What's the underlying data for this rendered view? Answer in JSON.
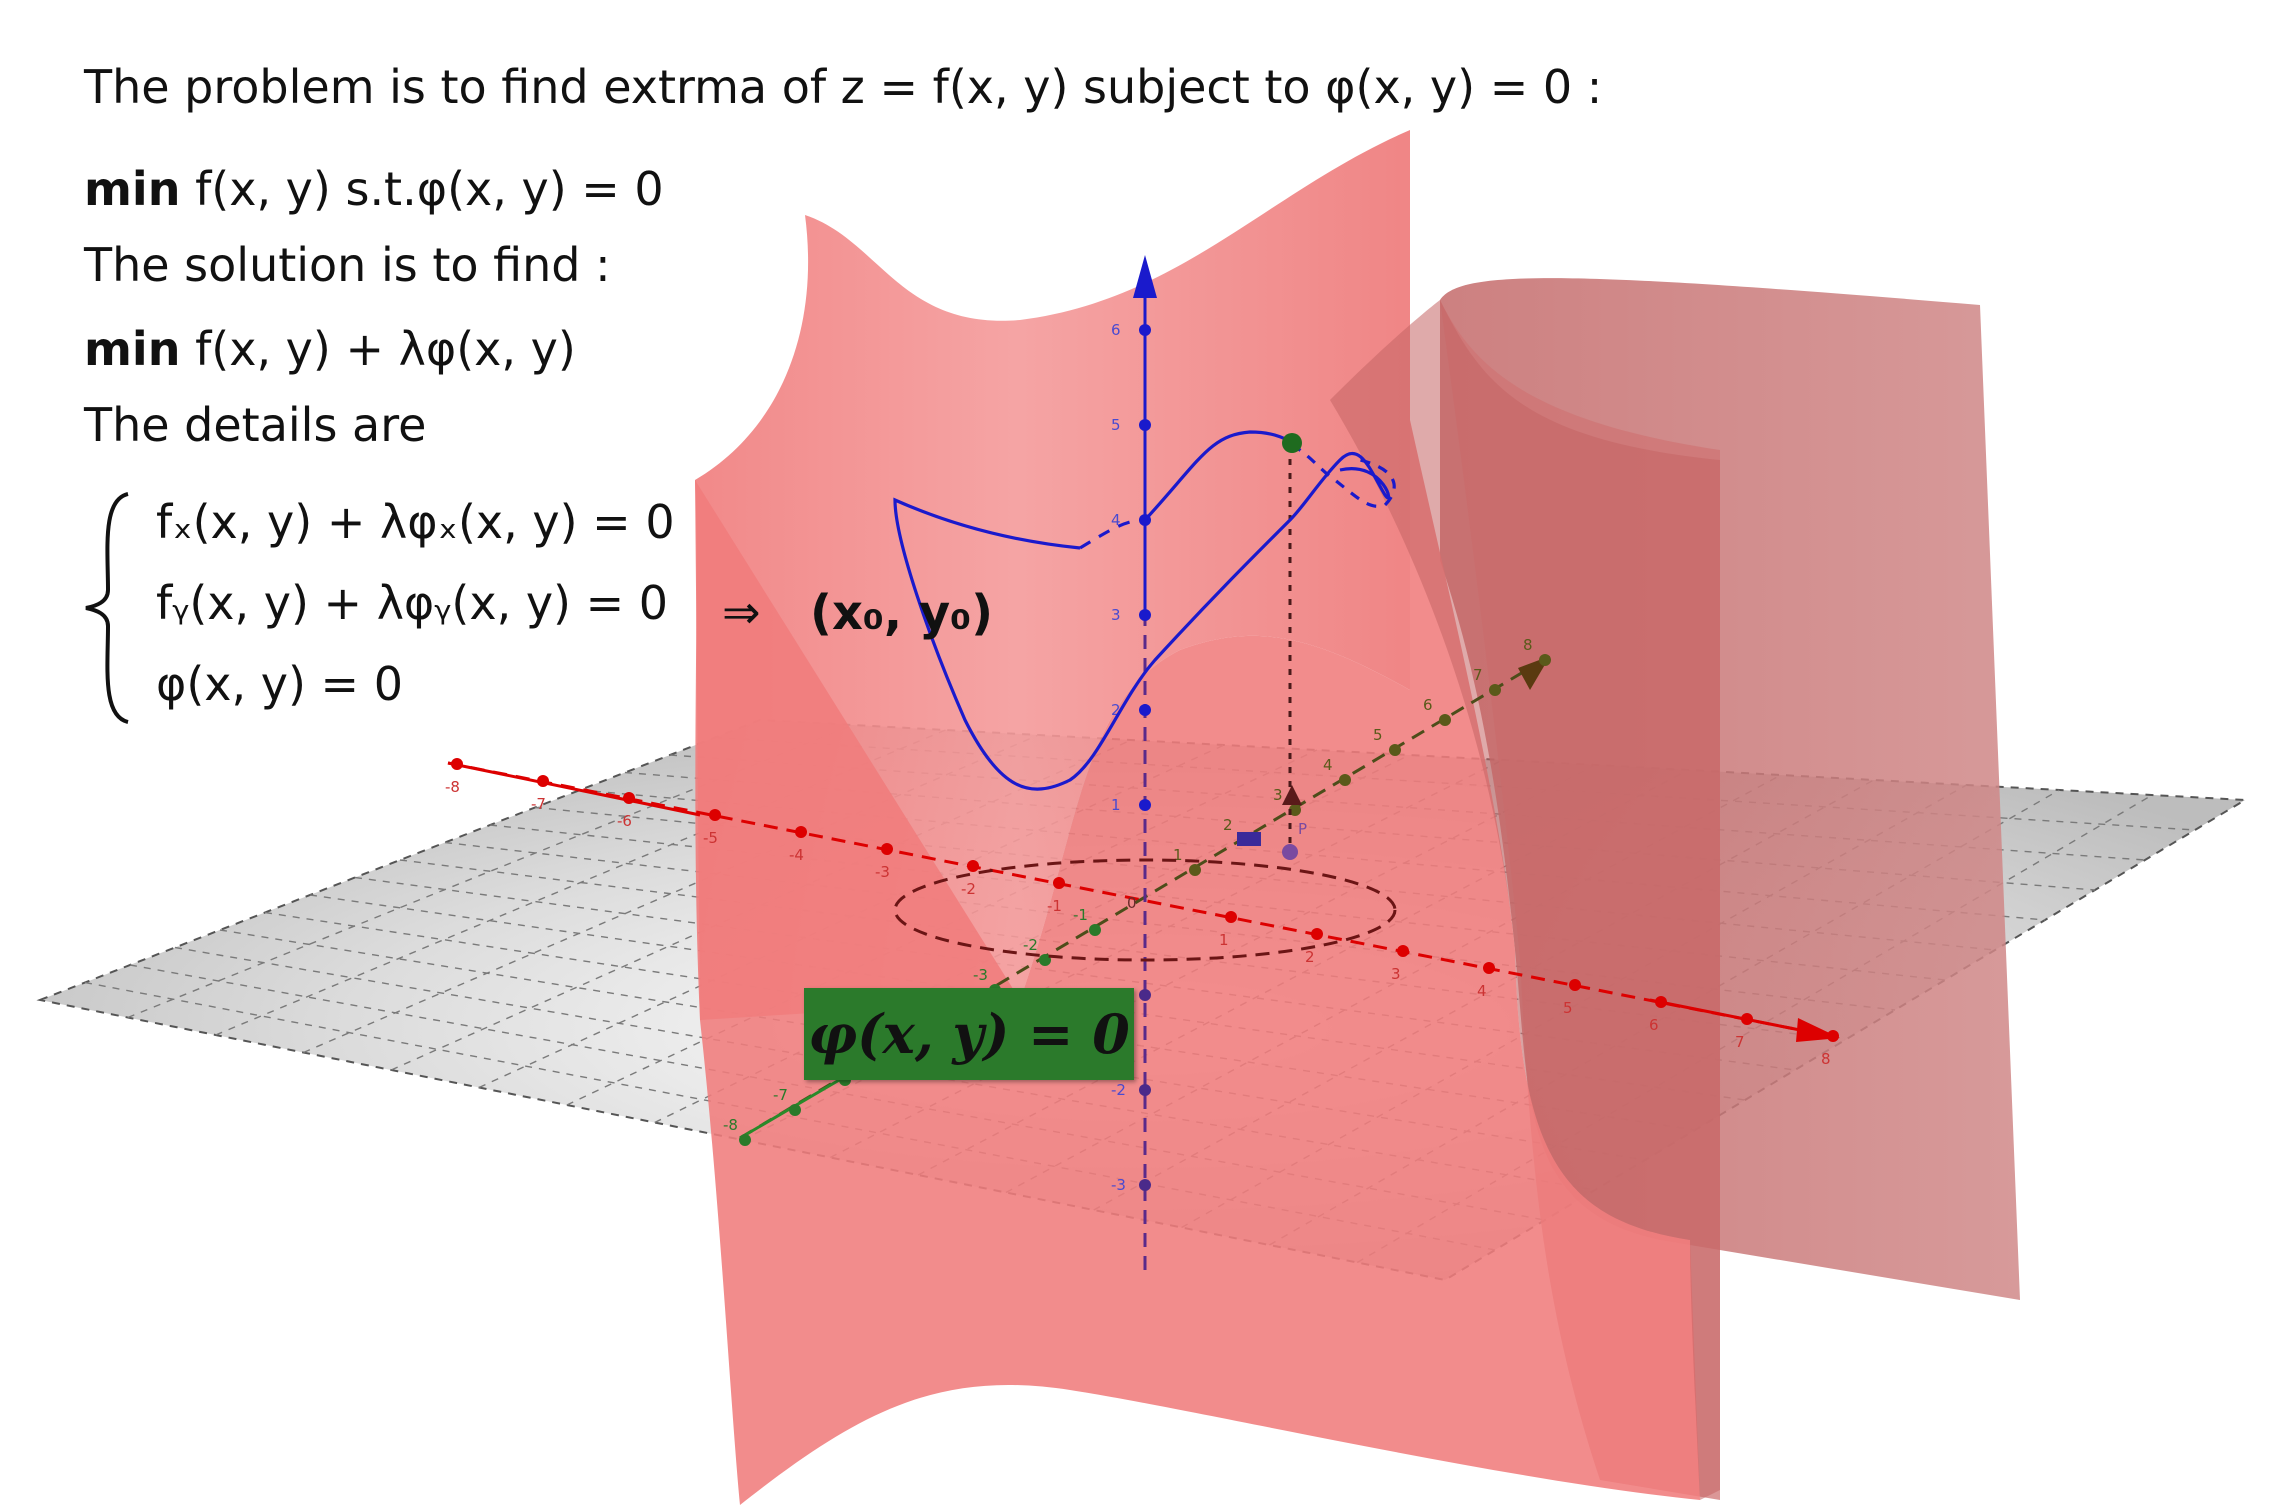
{
  "text": {
    "line1": "The problem is to find extrma of z = f(x, y) subject to φ(x, y) = 0 :",
    "line2_bold": "min",
    "line2_rest": " f(x, y) s.t.φ(x, y) = 0",
    "line3": "The solution is to find :",
    "line4_bold": "min",
    "line4_rest": " f(x, y) + λφ(x, y)",
    "line5": "The details are",
    "eq1": "fₓ(x, y) + λφₓ(x, y) = 0",
    "eq2": "fᵧ(x, y) + λφᵧ(x, y) = 0",
    "eq3": "φ(x, y) = 0",
    "implies": "⇒",
    "solution_point": "(x₀, y₀)",
    "constraint_label": "φ(x, y) = 0"
  },
  "axes": {
    "x_ticks": [
      "-8",
      "-7",
      "-6",
      "-5",
      "-4",
      "-3",
      "-2",
      "-1",
      "1",
      "2",
      "3",
      "4",
      "5",
      "6",
      "7",
      "8"
    ],
    "y_ticks": [
      "-8",
      "-7",
      "-6",
      "-5",
      "-4",
      "-3",
      "-2",
      "-1",
      "1",
      "2",
      "3",
      "4",
      "5",
      "6",
      "7",
      "8"
    ],
    "z_ticks": [
      "-3",
      "-2",
      "-1",
      "1",
      "2",
      "3",
      "4",
      "5",
      "6"
    ],
    "origin_label": "0",
    "point_label": "P"
  },
  "colors": {
    "surface": "#f08080",
    "surface_dark": "#c87878",
    "x_axis": "#dd0000",
    "y_axis": "#4d4d1a",
    "z_axis": "#0000cc",
    "curve": "#1a1acc",
    "point": "#1f6b1f",
    "constraint_box": "#2b7a2b"
  }
}
